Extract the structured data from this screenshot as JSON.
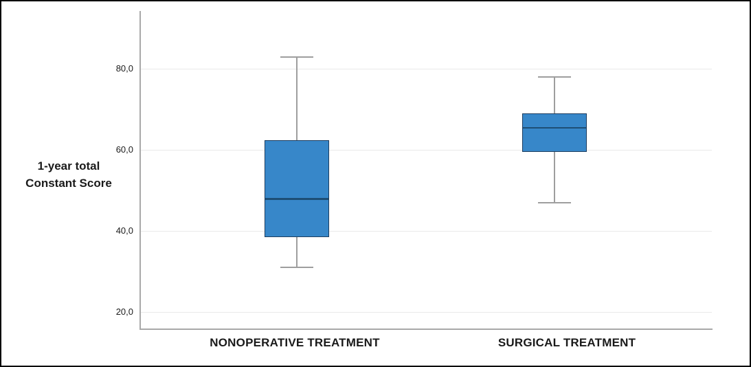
{
  "chart_data": {
    "type": "boxplot",
    "title": "",
    "ylabel_lines": [
      "1-year total",
      "Constant Score"
    ],
    "categories": [
      "NONOPERATIVE TREATMENT",
      "SURGICAL TREATMENT"
    ],
    "series": [
      {
        "name": "NONOPERATIVE TREATMENT",
        "min": 31,
        "q1": 38.5,
        "median": 48,
        "q3": 62.5,
        "max": 83
      },
      {
        "name": "SURGICAL TREATMENT",
        "min": 47,
        "q1": 59.5,
        "median": 65.5,
        "q3": 69,
        "max": 78
      }
    ],
    "y_ticks": [
      {
        "label": "20,0",
        "value": 20
      },
      {
        "label": "40,0",
        "value": 40
      },
      {
        "label": "60,0",
        "value": 60
      },
      {
        "label": "80,0",
        "value": 80
      }
    ],
    "ylim": [
      15.8,
      94.3
    ],
    "grid": "horizontal-only",
    "legend": "none",
    "colors": {
      "box_fill": "#3787C9",
      "box_border": "#1C3C5E",
      "median_line": "#1D4E75",
      "whisker": "#9E9E9E",
      "gridline": "#E9E9E9",
      "axis_line": "#A8A8A8",
      "text": "#1A1A1A",
      "figure_border": "#000000",
      "background": "#FFFFFF"
    }
  }
}
